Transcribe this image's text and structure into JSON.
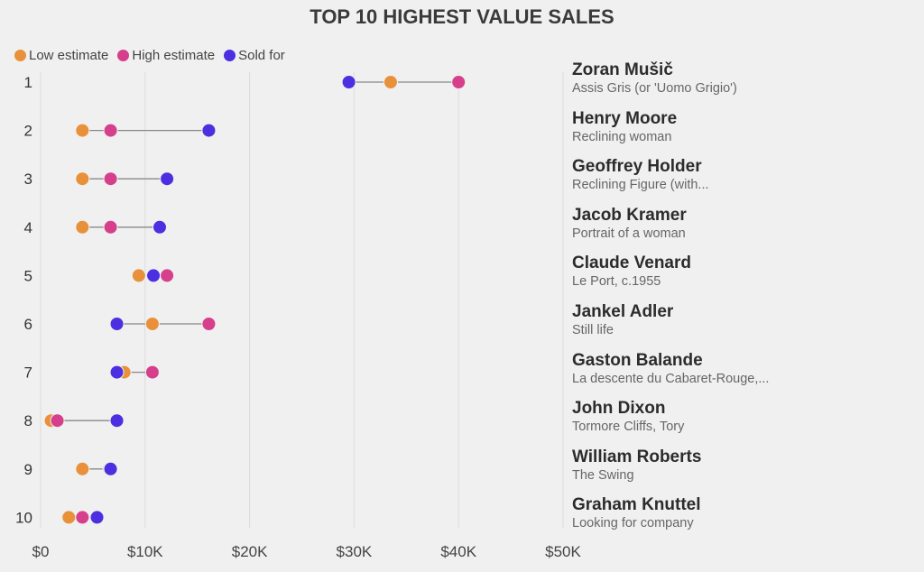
{
  "chart_data": {
    "type": "dumbbell",
    "title": "TOP 10 HIGHEST VALUE SALES",
    "xlim": [
      0,
      50000
    ],
    "x_ticks": [
      0,
      10000,
      20000,
      30000,
      40000,
      50000
    ],
    "x_tick_labels": [
      "$0",
      "$10K",
      "$20K",
      "$30K",
      "$40K",
      "$50K"
    ],
    "grid": "vertical",
    "legend_position": "top-left",
    "series": [
      {
        "name": "Low estimate",
        "color": "#E8913A"
      },
      {
        "name": "High estimate",
        "color": "#D63F8C"
      },
      {
        "name": "Sold for",
        "color": "#4B2FE0"
      }
    ],
    "rows": [
      {
        "rank": "1",
        "artist": "Zoran Mušič",
        "work": "Assis Gris (or 'Uomo Grigio')",
        "low": 33500,
        "high": 40000,
        "sold": 29500
      },
      {
        "rank": "2",
        "artist": "Henry Moore",
        "work": "Reclining woman",
        "low": 4000,
        "high": 6700,
        "sold": 16100
      },
      {
        "rank": "3",
        "artist": "Geoffrey Holder",
        "work": "Reclining Figure (with...",
        "low": 4000,
        "high": 6700,
        "sold": 12100
      },
      {
        "rank": "4",
        "artist": "Jacob Kramer",
        "work": "Portrait of a woman",
        "low": 4000,
        "high": 6700,
        "sold": 11400
      },
      {
        "rank": "5",
        "artist": "Claude Venard",
        "work": "Le Port, c.1955",
        "low": 9400,
        "high": 12100,
        "sold": 10800
      },
      {
        "rank": "6",
        "artist": "Jankel Adler",
        "work": "Still life",
        "low": 10700,
        "high": 16100,
        "sold": 7300
      },
      {
        "rank": "7",
        "artist": "Gaston Balande",
        "work": "La descente du Cabaret-Rouge,...",
        "low": 8000,
        "high": 10700,
        "sold": 7300
      },
      {
        "rank": "8",
        "artist": "John Dixon",
        "work": "Tormore Cliffs, Tory",
        "low": 1000,
        "high": 1600,
        "sold": 7300
      },
      {
        "rank": "9",
        "artist": "William Roberts",
        "work": "The Swing",
        "low": 4000,
        "high": 6600,
        "sold": 6700
      },
      {
        "rank": "10",
        "artist": "Graham Knuttel",
        "work": "Looking for company",
        "low": 2700,
        "high": 4000,
        "sold": 5400
      }
    ]
  }
}
